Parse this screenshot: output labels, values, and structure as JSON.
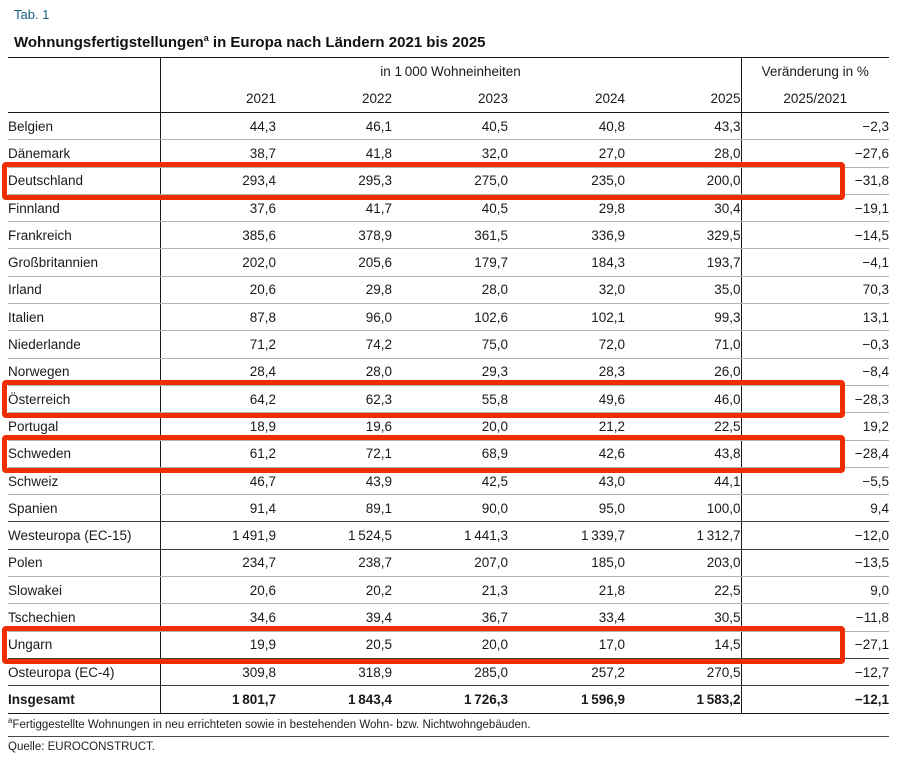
{
  "meta": {
    "tab_label": "Tab. 1",
    "title_main": "Wohnungsfertigstellungen",
    "title_sup": "a",
    "title_rest": " in Europa nach Ländern 2021 bis 2025"
  },
  "table_headers": {
    "group_header": "in 1 000 Wohneinheiten",
    "change_header": "Veränderung in %",
    "change_subheader": "2025/2021"
  },
  "footnote": {
    "sup": "a",
    "text": "Fertiggestellte Wohnungen in neu errichteten sowie in bestehenden Wohn- bzw. Nichtwohngebäuden."
  },
  "source": "Quelle: EUROCONSTRUCT.",
  "colors": {
    "highlight_red": "#ee2d00",
    "tab_label_blue": "#175e86",
    "light_rule": "#b3b1b1",
    "dark_rule": "#1a1a1a"
  },
  "chart_data": {
    "type": "table",
    "title": "Wohnungsfertigstellungen in Europa nach Ländern 2021 bis 2025",
    "unit": "in 1 000 Wohneinheiten",
    "years": [
      "2021",
      "2022",
      "2023",
      "2024",
      "2025"
    ],
    "change_column": "Veränderung in % 2025/2021",
    "rows": [
      {
        "label": "Belgien",
        "values": [
          44.3,
          46.1,
          40.5,
          40.8,
          43.3
        ],
        "change_pct": -2.3,
        "highlighted": false,
        "section_end": false,
        "bold": false
      },
      {
        "label": "Dänemark",
        "values": [
          38.7,
          41.8,
          32.0,
          27.0,
          28.0
        ],
        "change_pct": -27.6,
        "highlighted": false,
        "section_end": false,
        "bold": false
      },
      {
        "label": "Deutschland",
        "values": [
          293.4,
          295.3,
          275.0,
          235.0,
          200.0
        ],
        "change_pct": -31.8,
        "highlighted": true,
        "section_end": false,
        "bold": false
      },
      {
        "label": "Finnland",
        "values": [
          37.6,
          41.7,
          40.5,
          29.8,
          30.4
        ],
        "change_pct": -19.1,
        "highlighted": false,
        "section_end": false,
        "bold": false
      },
      {
        "label": "Frankreich",
        "values": [
          385.6,
          378.9,
          361.5,
          336.9,
          329.5
        ],
        "change_pct": -14.5,
        "highlighted": false,
        "section_end": false,
        "bold": false
      },
      {
        "label": "Großbritannien",
        "values": [
          202.0,
          205.6,
          179.7,
          184.3,
          193.7
        ],
        "change_pct": -4.1,
        "highlighted": false,
        "section_end": false,
        "bold": false
      },
      {
        "label": "Irland",
        "values": [
          20.6,
          29.8,
          28.0,
          32.0,
          35.0
        ],
        "change_pct": 70.3,
        "highlighted": false,
        "section_end": false,
        "bold": false
      },
      {
        "label": "Italien",
        "values": [
          87.8,
          96.0,
          102.6,
          102.1,
          99.3
        ],
        "change_pct": 13.1,
        "highlighted": false,
        "section_end": false,
        "bold": false
      },
      {
        "label": "Niederlande",
        "values": [
          71.2,
          74.2,
          75.0,
          72.0,
          71.0
        ],
        "change_pct": -0.3,
        "highlighted": false,
        "section_end": false,
        "bold": false
      },
      {
        "label": "Norwegen",
        "values": [
          28.4,
          28.0,
          29.3,
          28.3,
          26.0
        ],
        "change_pct": -8.4,
        "highlighted": false,
        "section_end": false,
        "bold": false
      },
      {
        "label": "Österreich",
        "values": [
          64.2,
          62.3,
          55.8,
          49.6,
          46.0
        ],
        "change_pct": -28.3,
        "highlighted": true,
        "section_end": false,
        "bold": false
      },
      {
        "label": "Portugal",
        "values": [
          18.9,
          19.6,
          20.0,
          21.2,
          22.5
        ],
        "change_pct": 19.2,
        "highlighted": false,
        "section_end": false,
        "bold": false
      },
      {
        "label": "Schweden",
        "values": [
          61.2,
          72.1,
          68.9,
          42.6,
          43.8
        ],
        "change_pct": -28.4,
        "highlighted": true,
        "section_end": false,
        "bold": false
      },
      {
        "label": "Schweiz",
        "values": [
          46.7,
          43.9,
          42.5,
          43.0,
          44.1
        ],
        "change_pct": -5.5,
        "highlighted": false,
        "section_end": false,
        "bold": false
      },
      {
        "label": "Spanien",
        "values": [
          91.4,
          89.1,
          90.0,
          95.0,
          100.0
        ],
        "change_pct": 9.4,
        "highlighted": false,
        "section_end": true,
        "bold": false
      },
      {
        "label": "Westeuropa (EC-15)",
        "values": [
          1491.9,
          1524.5,
          1441.3,
          1339.7,
          1312.7
        ],
        "change_pct": -12.0,
        "highlighted": false,
        "section_end": true,
        "bold": false
      },
      {
        "label": "Polen",
        "values": [
          234.7,
          238.7,
          207.0,
          185.0,
          203.0
        ],
        "change_pct": -13.5,
        "highlighted": false,
        "section_end": false,
        "bold": false
      },
      {
        "label": "Slowakei",
        "values": [
          20.6,
          20.2,
          21.3,
          21.8,
          22.5
        ],
        "change_pct": 9.0,
        "highlighted": false,
        "section_end": false,
        "bold": false
      },
      {
        "label": "Tschechien",
        "values": [
          34.6,
          39.4,
          36.7,
          33.4,
          30.5
        ],
        "change_pct": -11.8,
        "highlighted": false,
        "section_end": false,
        "bold": false
      },
      {
        "label": "Ungarn",
        "values": [
          19.9,
          20.5,
          20.0,
          17.0,
          14.5
        ],
        "change_pct": -27.1,
        "highlighted": true,
        "section_end": true,
        "bold": false
      },
      {
        "label": "Osteuropa (EC-4)",
        "values": [
          309.8,
          318.9,
          285.0,
          257.2,
          270.5
        ],
        "change_pct": -12.7,
        "highlighted": false,
        "section_end": true,
        "bold": false
      },
      {
        "label": "Insgesamt",
        "values": [
          1801.7,
          1843.4,
          1726.3,
          1596.9,
          1583.2
        ],
        "change_pct": -12.1,
        "highlighted": false,
        "section_end": true,
        "bold": true
      }
    ]
  }
}
